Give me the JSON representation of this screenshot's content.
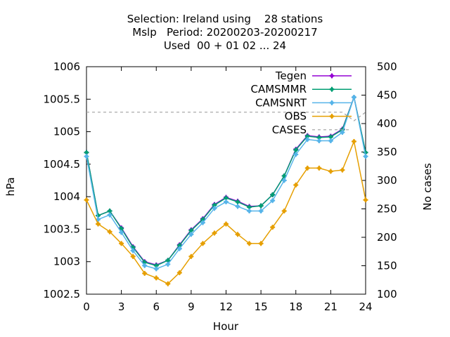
{
  "chart_data": {
    "type": "line",
    "title_lines": [
      "Selection: Ireland using    28 stations",
      "Mslp   Period: 20200203-20200217",
      "Used  00 + 01 02 ... 24"
    ],
    "xlabel": "Hour",
    "ylabel": "hPa",
    "y2label": "No cases",
    "xlim": [
      0,
      24
    ],
    "ylim": [
      1002.5,
      1006
    ],
    "y2lim": [
      100,
      500
    ],
    "xticks": [
      0,
      3,
      6,
      9,
      12,
      15,
      18,
      21,
      24
    ],
    "yticks": [
      1002.5,
      1003,
      1003.5,
      1004,
      1004.5,
      1005,
      1005.5,
      1006
    ],
    "y2ticks": [
      100,
      150,
      200,
      250,
      300,
      350,
      400,
      450,
      500
    ],
    "legend_position": "top-right",
    "grid": false,
    "x": [
      0,
      1,
      2,
      3,
      4,
      5,
      6,
      7,
      8,
      9,
      10,
      11,
      12,
      13,
      14,
      15,
      16,
      17,
      18,
      19,
      20,
      21,
      22,
      23,
      24
    ],
    "series": [
      {
        "name": "Tegen",
        "color": "#9400d3",
        "marker": "plus",
        "values": [
          1004.68,
          1003.71,
          1003.78,
          1003.52,
          1003.23,
          1003.0,
          1002.95,
          1003.02,
          1003.26,
          1003.49,
          1003.66,
          1003.88,
          1003.99,
          1003.93,
          1003.85,
          1003.86,
          1004.03,
          1004.32,
          1004.73,
          1004.94,
          1004.92,
          1004.93,
          1005.04,
          1005.53,
          1004.68
        ]
      },
      {
        "name": "CAMSMMR",
        "color": "#009e73",
        "marker": "plus",
        "values": [
          1004.68,
          1003.71,
          1003.78,
          1003.51,
          1003.22,
          1002.99,
          1002.94,
          1003.02,
          1003.25,
          1003.48,
          1003.65,
          1003.87,
          1003.98,
          1003.92,
          1003.84,
          1003.86,
          1004.03,
          1004.32,
          1004.72,
          1004.93,
          1004.91,
          1004.92,
          1005.03,
          1005.53,
          1004.68
        ]
      },
      {
        "name": "CAMSNRT",
        "color": "#56b4e9",
        "marker": "plus",
        "values": [
          1004.62,
          1003.65,
          1003.72,
          1003.45,
          1003.17,
          1002.94,
          1002.89,
          1002.96,
          1003.2,
          1003.42,
          1003.6,
          1003.82,
          1003.92,
          1003.85,
          1003.78,
          1003.78,
          1003.94,
          1004.25,
          1004.65,
          1004.88,
          1004.86,
          1004.86,
          1004.99,
          1005.53,
          1004.62
        ]
      },
      {
        "name": "OBS",
        "color": "#e69f00",
        "marker": "plus",
        "values": [
          1003.95,
          1003.58,
          1003.46,
          1003.28,
          1003.08,
          1002.82,
          1002.75,
          1002.66,
          1002.83,
          1003.08,
          1003.28,
          1003.44,
          1003.58,
          1003.42,
          1003.28,
          1003.28,
          1003.53,
          1003.78,
          1004.18,
          1004.44,
          1004.44,
          1004.39,
          1004.41,
          1004.85,
          1003.95
        ]
      },
      {
        "name": "CASES",
        "color": "#a0a0a0",
        "dashed": true,
        "axis": "y2",
        "values": [
          420,
          420,
          420,
          420,
          420,
          420,
          420,
          420,
          420,
          420,
          420,
          420,
          420,
          420,
          420,
          420,
          420,
          420,
          420,
          420,
          420,
          420,
          420,
          405,
          420
        ]
      }
    ]
  }
}
